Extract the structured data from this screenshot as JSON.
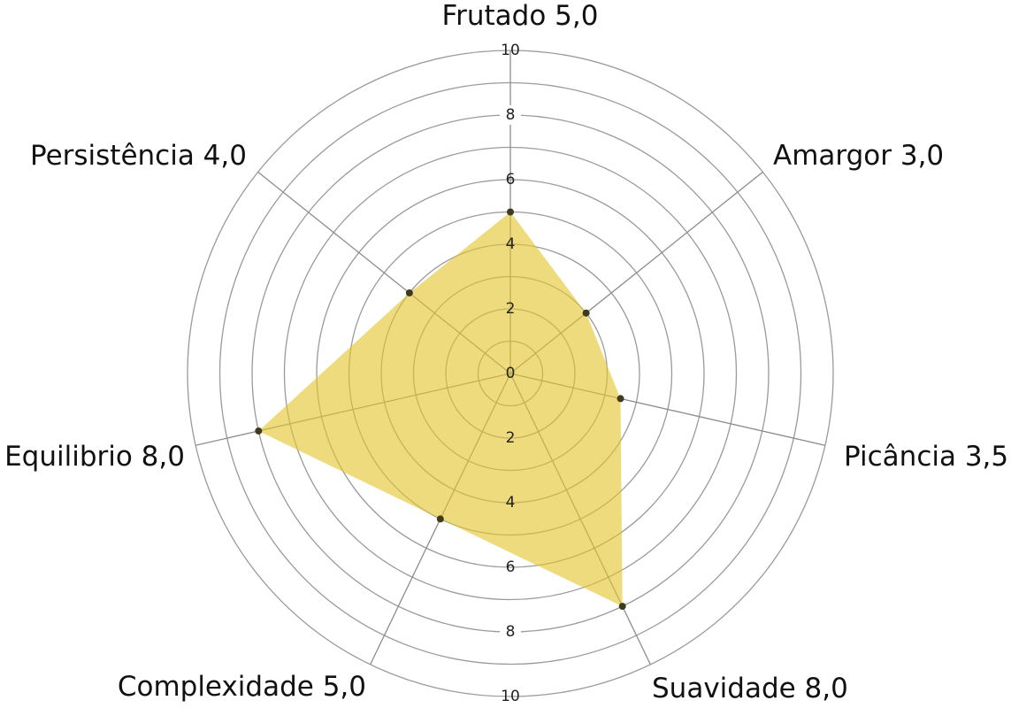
{
  "chart_data": {
    "type": "radar",
    "axes": [
      "Frutado",
      "Amargor",
      "Picância",
      "Suavidade",
      "Complexidade",
      "Equilibrio",
      "Persistência"
    ],
    "values": [
      5.0,
      3.0,
      3.5,
      8.0,
      5.0,
      8.0,
      4.0
    ],
    "value_labels": [
      "5,0",
      "3,0",
      "3,5",
      "8,0",
      "5,0",
      "8,0",
      "4,0"
    ],
    "range": [
      0,
      10
    ],
    "ticks": [
      0,
      2,
      4,
      6,
      8,
      10
    ],
    "tick_labels": [
      "0",
      "2",
      "4",
      "6",
      "8",
      "10"
    ],
    "grid": true,
    "colors": {
      "fill": "#e4c52f",
      "point": "#3d3a1e",
      "grid": "#9a9a9a"
    }
  }
}
